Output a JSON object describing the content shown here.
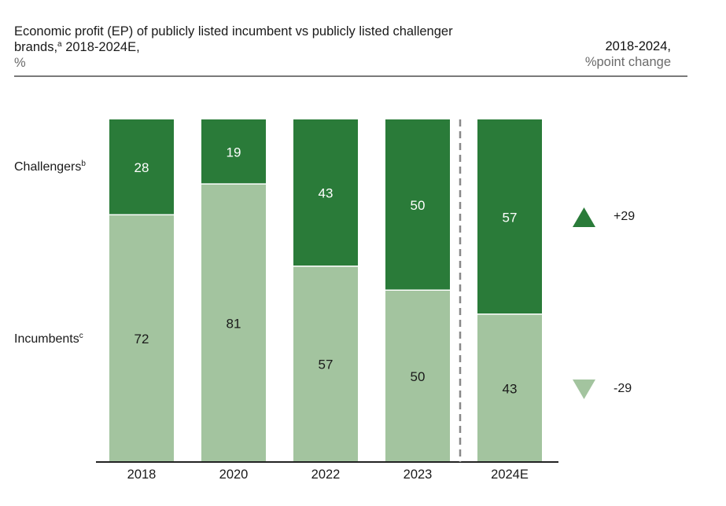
{
  "header": {
    "title_line1": "Economic profit (EP) of publicly listed incumbent vs publicly listed challenger",
    "title_line2_pre": "brands,",
    "title_sup": "a",
    "title_line2_post": " 2018-2024E,",
    "unit": "%",
    "right_title": "2018-2024,",
    "right_subtitle": "%point change"
  },
  "row_labels": {
    "challengers": "Challengers",
    "challengers_sup": "b",
    "incumbents": "Incumbents",
    "incumbents_sup": "c"
  },
  "change": {
    "challengers": "+29",
    "incumbents": "-29",
    "up_icon": "triangle-up",
    "down_icon": "triangle-down"
  },
  "colors": {
    "challengers": "#2a7b39",
    "incumbents": "#a3c49f",
    "axis": "#222222",
    "divider": "#888888"
  },
  "chart_data": {
    "type": "bar",
    "stacked": true,
    "title": "Economic profit (EP) of publicly listed incumbent vs publicly listed challenger brands, 2018-2024E, %",
    "categories": [
      "2018",
      "2020",
      "2022",
      "2023",
      "2024E"
    ],
    "series": [
      {
        "name": "Incumbents",
        "values": [
          72,
          81,
          57,
          50,
          43
        ]
      },
      {
        "name": "Challengers",
        "values": [
          28,
          19,
          43,
          50,
          57
        ]
      }
    ],
    "ylim": [
      0,
      100
    ],
    "xlabel": "",
    "ylabel": "%",
    "grid": false,
    "forecast_divider_before": "2024E",
    "annotations": [
      {
        "series": "Challengers",
        "change_2018_2024": "+29"
      },
      {
        "series": "Incumbents",
        "change_2018_2024": "-29"
      }
    ]
  }
}
